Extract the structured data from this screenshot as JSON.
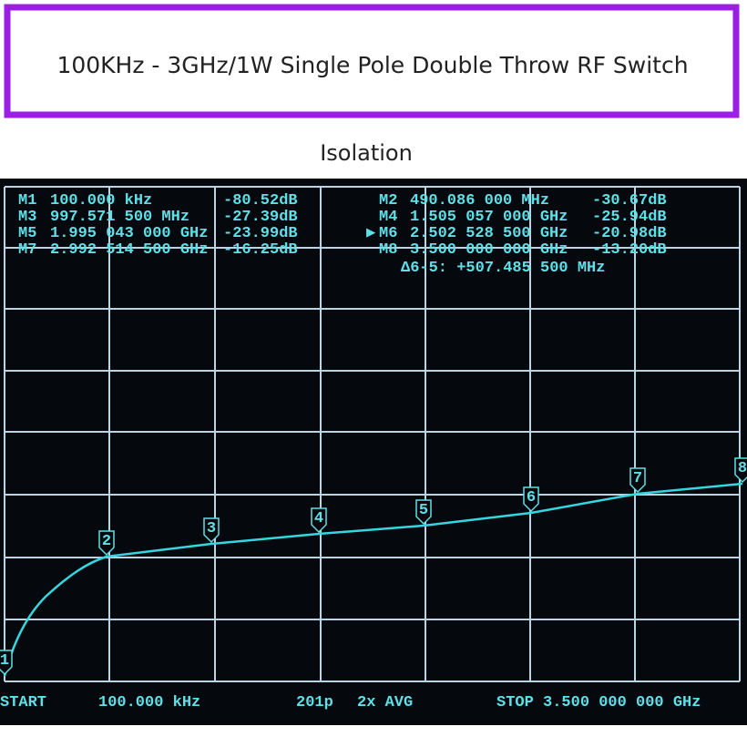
{
  "header": {
    "title": "100KHz - 3GHz/1W Single Pole Double Throw RF Switch"
  },
  "section_title": "Isolation",
  "screen": {
    "left_markers": [
      {
        "name": "M1",
        "frequency": "100.000 kHz",
        "level": "-80.52dB"
      },
      {
        "name": "M3",
        "frequency": "997.571 500 MHz",
        "level": "-27.39dB"
      },
      {
        "name": "M5",
        "frequency": "1.995 043 000 GHz",
        "level": "-23.99dB"
      },
      {
        "name": "M7",
        "frequency": "2.992 514 500 GHz",
        "level": "-16.25dB"
      }
    ],
    "right_markers": [
      {
        "name": "M2",
        "frequency": "490.086 000 MHz",
        "level": "-30.67dB"
      },
      {
        "name": "M4",
        "frequency": "1.505 057 000 GHz",
        "level": "-25.94dB"
      },
      {
        "name": "M6",
        "frequency": "2.502 528 500 GHz",
        "level": "-20.98dB"
      },
      {
        "name": "M8",
        "frequency": "3.500 000 000 GHz",
        "level": "-13.20dB"
      }
    ],
    "active_indicator": "▶",
    "delta": "Δ6-5: +507.485 500 MHz",
    "flags": [
      "1",
      "2",
      "3",
      "4",
      "5",
      "6",
      "7",
      "8"
    ],
    "footer": {
      "start_label": "START",
      "start_value": "100.000 kHz",
      "points": "201p",
      "averaging": "2x AVG",
      "stop": "STOP 3.500 000 000 GHz"
    }
  }
}
